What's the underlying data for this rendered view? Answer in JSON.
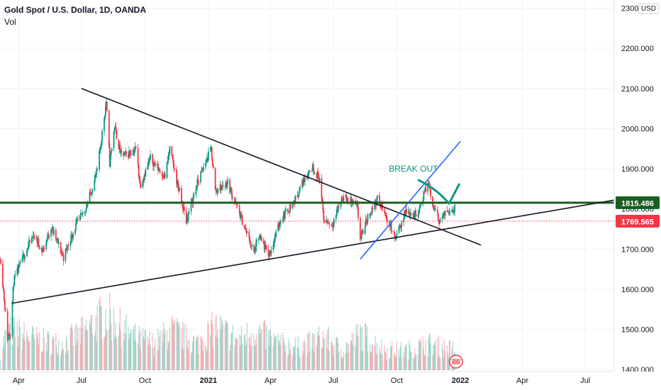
{
  "header": {
    "title": "Gold Spot / U.S. Dollar, 1D, OANDA",
    "volume_label": "Vol",
    "currency": "USD"
  },
  "chart_data": {
    "type": "candlestick",
    "symbol": "Gold Spot / U.S. Dollar",
    "interval": "1D",
    "source": "OANDA",
    "y_axis": {
      "side": "right",
      "ticks": [
        1400,
        1500,
        1600,
        1700,
        1800,
        1900,
        2000,
        2100,
        2200,
        2300
      ],
      "tick_labels": [
        "1400.000",
        "1500.000",
        "1600.000",
        "1700.000",
        "1800.000",
        "1900.000",
        "2000.000",
        "2100.000",
        "2200.000",
        "2300.000"
      ],
      "range": [
        1395,
        2315
      ]
    },
    "x_axis": {
      "ticks": [
        "Apr",
        "Jul",
        "Oct",
        "2021",
        "Apr",
        "Jul",
        "Oct",
        "2022",
        "Apr",
        "Jul"
      ],
      "tick_dates": [
        "2020-04-01",
        "2020-07-01",
        "2020-10-01",
        "2021-01-01",
        "2021-04-01",
        "2021-07-01",
        "2021-10-01",
        "2022-01-01",
        "2022-04-01",
        "2022-07-01"
      ],
      "range": [
        "2020-03-05",
        "2022-08-12"
      ]
    },
    "ohlc_path": [
      [
        "2020-03-06",
        1675
      ],
      [
        "2020-03-16",
        1480
      ],
      [
        "2020-03-20",
        1495
      ],
      [
        "2020-03-25",
        1620
      ],
      [
        "2020-04-10",
        1690
      ],
      [
        "2020-04-23",
        1735
      ],
      [
        "2020-05-06",
        1695
      ],
      [
        "2020-05-18",
        1755
      ],
      [
        "2020-06-05",
        1680
      ],
      [
        "2020-06-22",
        1755
      ],
      [
        "2020-07-08",
        1805
      ],
      [
        "2020-07-24",
        1895
      ],
      [
        "2020-08-06",
        2068
      ],
      [
        "2020-08-11",
        1915
      ],
      [
        "2020-08-18",
        2005
      ],
      [
        "2020-08-27",
        1935
      ],
      [
        "2020-09-04",
        1935
      ],
      [
        "2020-09-18",
        1950
      ],
      [
        "2020-09-24",
        1860
      ],
      [
        "2020-10-09",
        1925
      ],
      [
        "2020-10-30",
        1880
      ],
      [
        "2020-11-06",
        1950
      ],
      [
        "2020-11-16",
        1870
      ],
      [
        "2020-11-30",
        1770
      ],
      [
        "2020-12-16",
        1865
      ],
      [
        "2021-01-05",
        1950
      ],
      [
        "2021-01-11",
        1845
      ],
      [
        "2021-01-29",
        1865
      ],
      [
        "2021-02-18",
        1775
      ],
      [
        "2021-03-08",
        1690
      ],
      [
        "2021-03-15",
        1730
      ],
      [
        "2021-03-30",
        1685
      ],
      [
        "2021-04-16",
        1775
      ],
      [
        "2021-05-06",
        1820
      ],
      [
        "2021-05-21",
        1880
      ],
      [
        "2021-06-01",
        1905
      ],
      [
        "2021-06-11",
        1875
      ],
      [
        "2021-06-17",
        1775
      ],
      [
        "2021-06-29",
        1760
      ],
      [
        "2021-07-14",
        1830
      ],
      [
        "2021-07-30",
        1815
      ],
      [
        "2021-08-05",
        1800
      ],
      [
        "2021-08-09",
        1725
      ],
      [
        "2021-08-20",
        1780
      ],
      [
        "2021-09-03",
        1825
      ],
      [
        "2021-09-20",
        1765
      ],
      [
        "2021-09-29",
        1725
      ],
      [
        "2021-10-14",
        1795
      ],
      [
        "2021-10-29",
        1785
      ],
      [
        "2021-11-05",
        1815
      ],
      [
        "2021-11-16",
        1865
      ],
      [
        "2021-11-22",
        1805
      ],
      [
        "2021-12-02",
        1770
      ],
      [
        "2021-12-16",
        1800
      ],
      [
        "2021-12-24",
        1800
      ]
    ],
    "volume_path": [
      [
        "2020-03-06",
        30
      ],
      [
        "2020-03-16",
        60
      ],
      [
        "2020-04-01",
        55
      ],
      [
        "2020-05-01",
        45
      ],
      [
        "2020-06-01",
        40
      ],
      [
        "2020-07-01",
        55
      ],
      [
        "2020-08-06",
        85
      ],
      [
        "2020-08-20",
        70
      ],
      [
        "2020-09-15",
        50
      ],
      [
        "2020-10-15",
        40
      ],
      [
        "2020-11-09",
        60
      ],
      [
        "2020-12-15",
        40
      ],
      [
        "2021-01-11",
        65
      ],
      [
        "2021-02-15",
        45
      ],
      [
        "2021-03-08",
        60
      ],
      [
        "2021-04-15",
        40
      ],
      [
        "2021-05-15",
        35
      ],
      [
        "2021-06-17",
        50
      ],
      [
        "2021-07-15",
        30
      ],
      [
        "2021-08-09",
        55
      ],
      [
        "2021-09-15",
        30
      ],
      [
        "2021-10-15",
        30
      ],
      [
        "2021-11-16",
        40
      ],
      [
        "2021-12-24",
        30
      ]
    ],
    "horizontal_lines": [
      {
        "label": "1815.486",
        "value": 1815.486,
        "color": "#1b5e20",
        "style": "solid"
      },
      {
        "label": "1769.565",
        "value": 1769.565,
        "color": "#f23645",
        "style": "dotted"
      }
    ],
    "trendlines": [
      {
        "from": [
          "2020-07-01",
          2100
        ],
        "to": [
          "2022-01-31",
          1710
        ],
        "color": "#131722"
      },
      {
        "from": [
          "2020-03-22",
          1565
        ],
        "to": [
          "2022-08-12",
          1822
        ],
        "color": "#131722"
      },
      {
        "from": [
          "2021-08-09",
          1675
        ],
        "to": [
          "2022-01-01",
          1968
        ],
        "color": "#2962ff"
      }
    ],
    "annotations": [
      {
        "text": "BREAK OUT",
        "date": "2021-10-10",
        "value": 1900,
        "color": "#089981"
      }
    ],
    "colors": {
      "up": "#089981",
      "down": "#f23645",
      "grid": "#f0f3fa",
      "axis_text": "#131722"
    }
  }
}
